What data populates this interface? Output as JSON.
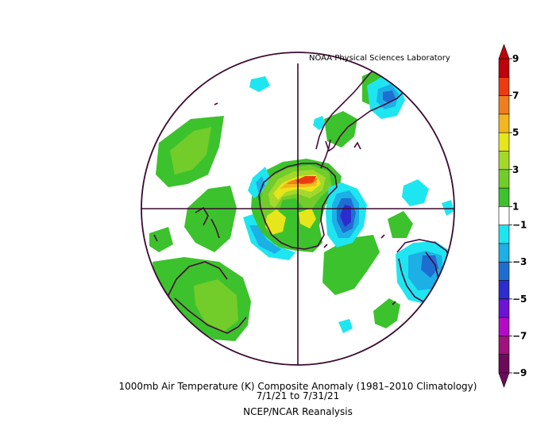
{
  "credit": "NOAA Physical Sciences Laboratory",
  "caption": {
    "line1": "1000mb Air Temperature (K) Composite Anomaly (1981–2010 Climatology)",
    "line2": "7/1/21   to 7/31/21",
    "line3": "NCEP/NCAR Reanalysis"
  },
  "colorbar": {
    "ticks": [
      "9",
      "7",
      "5",
      "3",
      "1",
      "−1",
      "−3",
      "−5",
      "−7",
      "−9"
    ],
    "bins": [
      {
        "range": "8 to 9",
        "color": "#c0000a"
      },
      {
        "range": "7 to 8",
        "color": "#ee3a10"
      },
      {
        "range": "6 to 7",
        "color": "#f07d1e"
      },
      {
        "range": "5 to 6",
        "color": "#f5b51e"
      },
      {
        "range": "4 to 5",
        "color": "#e6e61a"
      },
      {
        "range": "3 to 4",
        "color": "#a4d82a"
      },
      {
        "range": "2 to 3",
        "color": "#72cc2a"
      },
      {
        "range": "1 to 2",
        "color": "#3cc22c"
      },
      {
        "range": "-1 to 1",
        "color": "#ffffff"
      },
      {
        "range": "-2 to -1",
        "color": "#1ee6f0"
      },
      {
        "range": "-3 to -2",
        "color": "#1cb0e6"
      },
      {
        "range": "-4 to -3",
        "color": "#1e6ed2"
      },
      {
        "range": "-5 to -4",
        "color": "#2c2cd0"
      },
      {
        "range": "-6 to -5",
        "color": "#6e12d6"
      },
      {
        "range": "-7 to -6",
        "color": "#b40ac8"
      },
      {
        "range": "-8 to -7",
        "color": "#a0127e"
      },
      {
        "range": "-9 to -8",
        "color": "#6e0a5c"
      }
    ]
  },
  "map": {
    "projection": "polar stereographic (south pole centered)",
    "variable": "1000mb air temperature anomaly",
    "units": "K"
  }
}
